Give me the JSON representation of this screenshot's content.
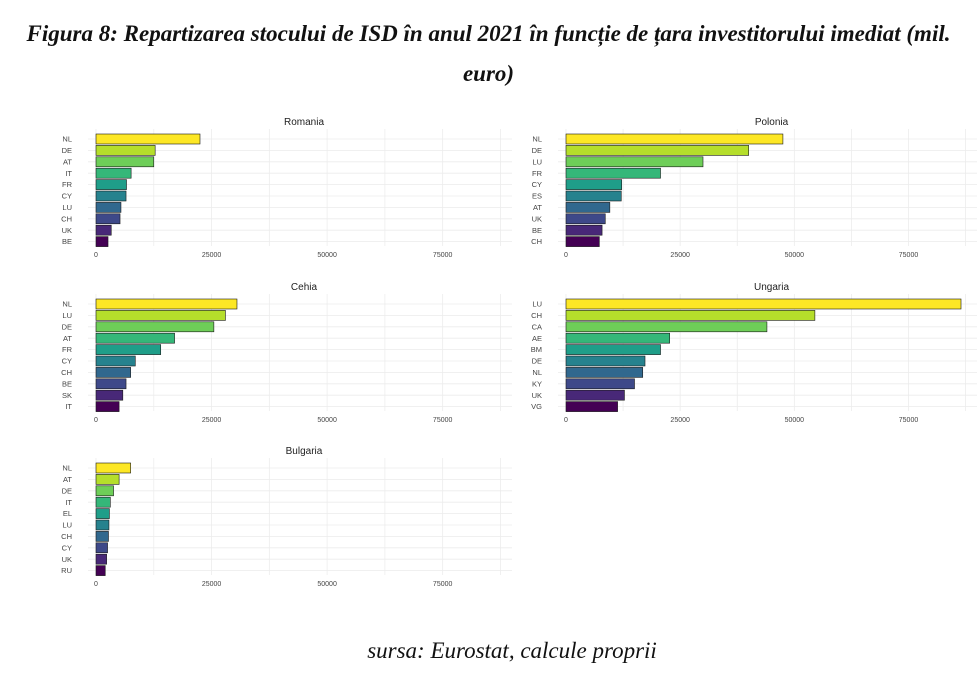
{
  "figure": {
    "title": "Figura 8: Repartizarea stocului de ISD în anul 2021 în funcție de țara investitorului imediat (mil. euro)",
    "source": "sursa: Eurostat, calcule proprii"
  },
  "chart_data": [
    {
      "type": "bar",
      "orientation": "horizontal",
      "title": "Romania",
      "categories": [
        "NL",
        "DE",
        "AT",
        "IT",
        "FR",
        "CY",
        "LU",
        "CH",
        "UK",
        "BE"
      ],
      "values": [
        22500,
        12800,
        12500,
        7600,
        6600,
        6500,
        5400,
        5200,
        3300,
        2600
      ],
      "xlim": [
        0,
        90000
      ],
      "xticks": [
        0,
        25000,
        50000,
        75000
      ],
      "palette": [
        "#FDE725",
        "#B5DE2B",
        "#6ECE58",
        "#35B779",
        "#1F9E89",
        "#26828E",
        "#31688E",
        "#3E4989",
        "#482878",
        "#440154"
      ],
      "grid": true
    },
    {
      "type": "bar",
      "orientation": "horizontal",
      "title": "Polonia",
      "categories": [
        "NL",
        "DE",
        "LU",
        "FR",
        "CY",
        "ES",
        "AT",
        "UK",
        "BE",
        "CH"
      ],
      "values": [
        47500,
        40000,
        30000,
        20700,
        12200,
        12100,
        9600,
        8600,
        7900,
        7300
      ],
      "xlim": [
        0,
        90000
      ],
      "xticks": [
        0,
        25000,
        50000,
        75000
      ],
      "palette": [
        "#FDE725",
        "#B5DE2B",
        "#6ECE58",
        "#35B779",
        "#1F9E89",
        "#26828E",
        "#31688E",
        "#3E4989",
        "#482878",
        "#440154"
      ],
      "grid": true
    },
    {
      "type": "bar",
      "orientation": "horizontal",
      "title": "Cehia",
      "categories": [
        "NL",
        "LU",
        "DE",
        "AT",
        "FR",
        "CY",
        "CH",
        "BE",
        "SK",
        "IT"
      ],
      "values": [
        30500,
        28000,
        25500,
        17000,
        14000,
        8500,
        7500,
        6500,
        5800,
        5000
      ],
      "xlim": [
        0,
        90000
      ],
      "xticks": [
        0,
        25000,
        50000,
        75000
      ],
      "palette": [
        "#FDE725",
        "#B5DE2B",
        "#6ECE58",
        "#35B779",
        "#1F9E89",
        "#26828E",
        "#31688E",
        "#3E4989",
        "#482878",
        "#440154"
      ],
      "grid": true
    },
    {
      "type": "bar",
      "orientation": "horizontal",
      "title": "Ungaria",
      "categories": [
        "LU",
        "CH",
        "CA",
        "AE",
        "BM",
        "DE",
        "NL",
        "KY",
        "UK",
        "VG"
      ],
      "values": [
        86500,
        54500,
        44000,
        22700,
        20700,
        17300,
        16800,
        15000,
        12800,
        11300
      ],
      "xlim": [
        0,
        90000
      ],
      "xticks": [
        0,
        25000,
        50000,
        75000
      ],
      "palette": [
        "#FDE725",
        "#B5DE2B",
        "#6ECE58",
        "#35B779",
        "#1F9E89",
        "#26828E",
        "#31688E",
        "#3E4989",
        "#482878",
        "#440154"
      ],
      "grid": true
    },
    {
      "type": "bar",
      "orientation": "horizontal",
      "title": "Bulgaria",
      "categories": [
        "NL",
        "AT",
        "DE",
        "IT",
        "EL",
        "LU",
        "CH",
        "CY",
        "UK",
        "RU"
      ],
      "values": [
        7500,
        5000,
        3800,
        3100,
        2900,
        2800,
        2700,
        2500,
        2300,
        2000
      ],
      "xlim": [
        0,
        90000
      ],
      "xticks": [
        0,
        25000,
        50000,
        75000
      ],
      "palette": [
        "#FDE725",
        "#B5DE2B",
        "#6ECE58",
        "#35B779",
        "#1F9E89",
        "#26828E",
        "#31688E",
        "#3E4989",
        "#482878",
        "#440154"
      ],
      "grid": true
    }
  ]
}
